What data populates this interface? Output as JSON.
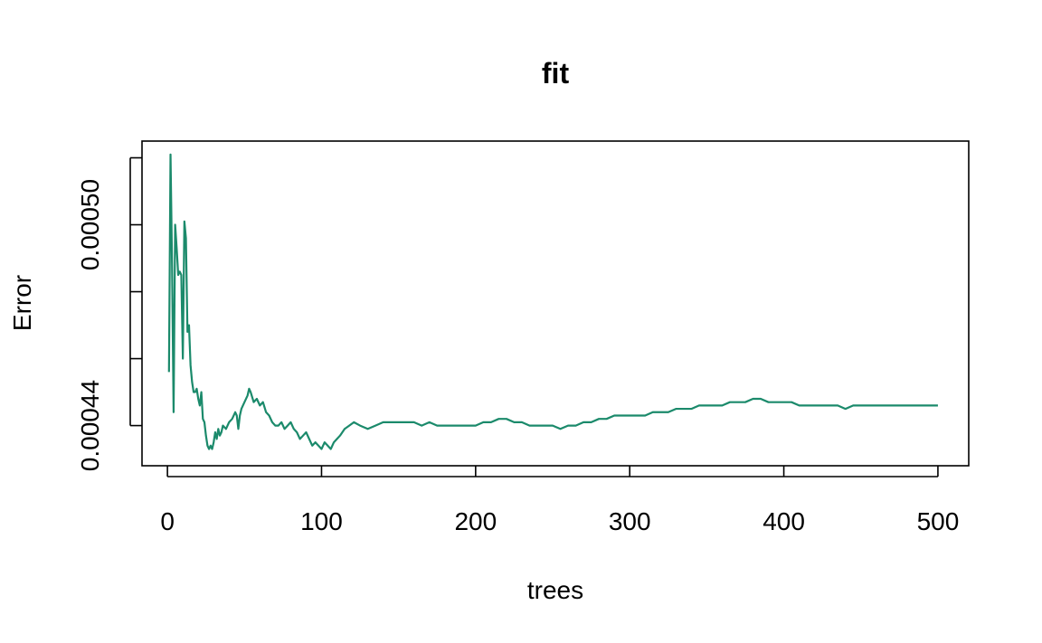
{
  "chart_data": {
    "type": "line",
    "title": "fit",
    "xlabel": "trees",
    "ylabel": "Error",
    "xlim": [
      -16.5,
      520
    ],
    "ylim": [
      0.000428,
      0.000525
    ],
    "xticks": [
      0,
      100,
      200,
      300,
      400,
      500
    ],
    "xtick_labels": [
      "0",
      "100",
      "200",
      "300",
      "400",
      "500"
    ],
    "yticks": [
      0.00044,
      0.00046,
      0.00048,
      0.0005,
      0.00052
    ],
    "ytick_labels": [
      "0.00044",
      "",
      "",
      "0.00050",
      ""
    ],
    "grid": false,
    "series": [
      {
        "color": "#1b8a6b",
        "x": [
          1,
          2,
          3,
          4,
          5,
          6,
          7,
          8,
          9,
          10,
          11,
          12,
          13,
          14,
          15,
          16,
          17,
          18,
          19,
          20,
          21,
          22,
          23,
          24,
          25,
          26,
          27,
          28,
          29,
          30,
          31,
          32,
          33,
          34,
          35,
          36,
          38,
          40,
          42,
          44,
          45,
          46,
          47,
          48,
          50,
          52,
          53,
          54,
          56,
          58,
          60,
          62,
          64,
          66,
          68,
          70,
          72,
          74,
          76,
          78,
          80,
          82,
          84,
          86,
          88,
          90,
          92,
          94,
          96,
          98,
          100,
          102,
          104,
          106,
          108,
          110,
          112,
          115,
          118,
          121,
          125,
          130,
          135,
          140,
          145,
          150,
          155,
          160,
          165,
          170,
          175,
          180,
          185,
          190,
          195,
          200,
          205,
          210,
          215,
          220,
          225,
          230,
          235,
          240,
          245,
          250,
          255,
          260,
          265,
          270,
          275,
          280,
          285,
          290,
          295,
          300,
          305,
          310,
          315,
          320,
          325,
          330,
          335,
          340,
          345,
          350,
          355,
          360,
          365,
          370,
          375,
          380,
          385,
          390,
          395,
          400,
          405,
          410,
          415,
          420,
          425,
          430,
          435,
          440,
          445,
          450,
          455,
          460,
          465,
          470,
          475,
          480,
          485,
          490,
          495,
          500
        ],
        "y": [
          0.000456,
          0.000521,
          0.000488,
          0.000444,
          0.0005,
          0.000493,
          0.000485,
          0.000486,
          0.000485,
          0.00046,
          0.000501,
          0.000496,
          0.000468,
          0.00047,
          0.000458,
          0.000453,
          0.00045,
          0.00045,
          0.000451,
          0.000448,
          0.000446,
          0.00045,
          0.000442,
          0.000441,
          0.000437,
          0.000434,
          0.000433,
          0.000434,
          0.000433,
          0.000435,
          0.000438,
          0.000436,
          0.000439,
          0.000437,
          0.000438,
          0.00044,
          0.000439,
          0.000441,
          0.000442,
          0.000444,
          0.000443,
          0.000439,
          0.000443,
          0.000445,
          0.000447,
          0.000449,
          0.000451,
          0.00045,
          0.000447,
          0.000448,
          0.000446,
          0.000447,
          0.000444,
          0.000443,
          0.000441,
          0.00044,
          0.00044,
          0.000441,
          0.000439,
          0.00044,
          0.000441,
          0.000439,
          0.000438,
          0.000436,
          0.000437,
          0.000438,
          0.000436,
          0.000434,
          0.000435,
          0.000434,
          0.000433,
          0.000435,
          0.000434,
          0.000433,
          0.000435,
          0.000436,
          0.000437,
          0.000439,
          0.00044,
          0.000441,
          0.00044,
          0.000439,
          0.00044,
          0.000441,
          0.000441,
          0.000441,
          0.000441,
          0.000441,
          0.00044,
          0.000441,
          0.00044,
          0.00044,
          0.00044,
          0.00044,
          0.00044,
          0.00044,
          0.000441,
          0.000441,
          0.000442,
          0.000442,
          0.000441,
          0.000441,
          0.00044,
          0.00044,
          0.00044,
          0.00044,
          0.000439,
          0.00044,
          0.00044,
          0.000441,
          0.000441,
          0.000442,
          0.000442,
          0.000443,
          0.000443,
          0.000443,
          0.000443,
          0.000443,
          0.000444,
          0.000444,
          0.000444,
          0.000445,
          0.000445,
          0.000445,
          0.000446,
          0.000446,
          0.000446,
          0.000446,
          0.000447,
          0.000447,
          0.000447,
          0.000448,
          0.000448,
          0.000447,
          0.000447,
          0.000447,
          0.000447,
          0.000446,
          0.000446,
          0.000446,
          0.000446,
          0.000446,
          0.000446,
          0.000445,
          0.000446,
          0.000446,
          0.000446,
          0.000446,
          0.000446,
          0.000446,
          0.000446,
          0.000446,
          0.000446,
          0.000446,
          0.000446,
          0.000446
        ]
      }
    ]
  }
}
